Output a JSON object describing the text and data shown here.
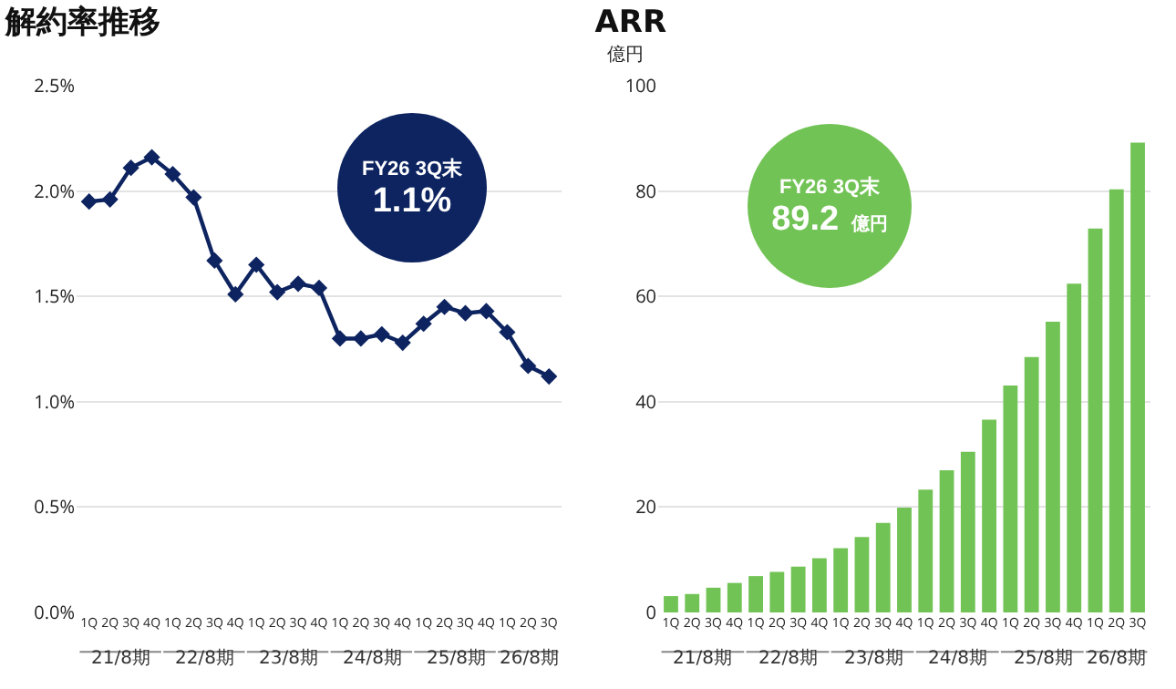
{
  "chart_data": [
    {
      "type": "line",
      "title": "解約率推移",
      "categories": [
        "1Q",
        "2Q",
        "3Q",
        "4Q",
        "1Q",
        "2Q",
        "3Q",
        "4Q",
        "1Q",
        "2Q",
        "3Q",
        "4Q",
        "1Q",
        "2Q",
        "3Q",
        "4Q",
        "1Q",
        "2Q",
        "3Q",
        "4Q",
        "1Q",
        "2Q",
        "3Q"
      ],
      "series": [
        {
          "color": "#0d2460",
          "values": [
            1.95,
            1.96,
            2.11,
            2.16,
            2.08,
            1.97,
            1.67,
            1.51,
            1.65,
            1.52,
            1.56,
            1.54,
            1.3,
            1.3,
            1.32,
            1.28,
            1.37,
            1.45,
            1.42,
            1.43,
            1.33,
            1.17,
            1.12
          ]
        }
      ],
      "ylim": [
        0,
        2.5
      ],
      "yticks": [
        {
          "value": 0,
          "label": "0.0%"
        },
        {
          "value": 0.5,
          "label": "0.5%"
        },
        {
          "value": 1,
          "label": "1.0%"
        },
        {
          "value": 1.5,
          "label": "1.5%"
        },
        {
          "value": 2,
          "label": "2.0%"
        },
        {
          "value": 2.5,
          "label": "2.5%"
        }
      ],
      "grid": "y",
      "marker": "diamond",
      "line_style": "solid",
      "annotations": [
        "FY26 3Q末",
        "1.1%",
        "21/8期",
        "22/8期",
        "23/8期",
        "24/8期",
        "25/8期",
        "26/8期"
      ]
    },
    {
      "type": "bar",
      "title": "ARR",
      "ylabel": "億円",
      "categories": [
        "1Q",
        "2Q",
        "3Q",
        "4Q",
        "1Q",
        "2Q",
        "3Q",
        "4Q",
        "1Q",
        "2Q",
        "3Q",
        "4Q",
        "1Q",
        "2Q",
        "3Q",
        "4Q",
        "1Q",
        "2Q",
        "3Q",
        "4Q",
        "1Q",
        "2Q",
        "3Q"
      ],
      "series": [
        {
          "color": "#72c355",
          "values": [
            3.1,
            3.5,
            4.7,
            5.6,
            6.9,
            7.7,
            8.7,
            10.3,
            12.2,
            14.3,
            17.0,
            19.9,
            23.3,
            27.0,
            30.5,
            36.6,
            43.1,
            48.5,
            55.2,
            62.4,
            72.9,
            80.3,
            89.2
          ]
        }
      ],
      "ylim": [
        0,
        100
      ],
      "yticks": [
        0,
        20,
        40,
        60,
        80,
        100
      ],
      "grid": "y",
      "annotations": [
        "FY26 3Q末",
        "89.2 億円",
        "21/8期",
        "22/8期",
        "23/8期",
        "24/8期",
        "25/8期",
        "26/8期"
      ]
    }
  ]
}
